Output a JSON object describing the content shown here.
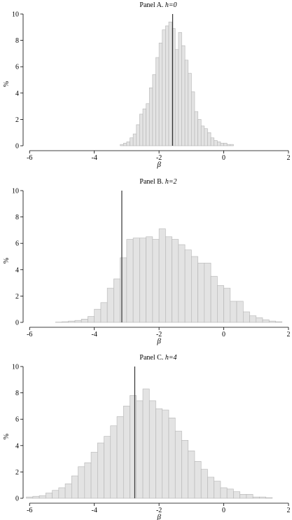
{
  "figure": {
    "bar_fill": "#e3e3e3",
    "bar_stroke": "#b4b4b4",
    "axis_color": "#000000",
    "marker_color": "#333333"
  },
  "chart_data": [
    {
      "type": "bar",
      "title_prefix": "Panel A. ",
      "title_italic": "h=0",
      "xlabel": "β",
      "ylabel": "%",
      "xlim": [
        -6.2,
        2.0
      ],
      "ylim": [
        0,
        10
      ],
      "xticks": [
        -6,
        -4,
        -2,
        0,
        2
      ],
      "yticks": [
        0,
        2,
        4,
        6,
        8,
        10
      ],
      "bin_width": 0.1,
      "bin_start": -3.2,
      "values": [
        0.1,
        0.2,
        0.3,
        0.6,
        0.9,
        1.6,
        2.4,
        2.8,
        3.2,
        4.4,
        5.4,
        6.7,
        7.8,
        8.8,
        9.1,
        9.4,
        8.9,
        7.3,
        8.6,
        7.6,
        6.5,
        5.5,
        4.1,
        2.6,
        2.0,
        1.5,
        1.3,
        1.0,
        0.6,
        0.4,
        0.3,
        0.2,
        0.2,
        0.1,
        0.1
      ],
      "marker_x": -1.58,
      "marker_height": 10
    },
    {
      "type": "bar",
      "title_prefix": "Panel B. ",
      "title_italic": "h=2",
      "xlabel": "β",
      "ylabel": "%",
      "xlim": [
        -6.2,
        2.0
      ],
      "ylim": [
        0,
        10
      ],
      "xticks": [
        -6,
        -4,
        -2,
        0,
        2
      ],
      "yticks": [
        0,
        2,
        4,
        6,
        8,
        10
      ],
      "bin_width": 0.2,
      "bin_start": -5.2,
      "values": [
        0.02,
        0.05,
        0.1,
        0.15,
        0.25,
        0.45,
        1.0,
        1.5,
        2.6,
        3.3,
        4.9,
        6.3,
        6.4,
        6.4,
        6.5,
        6.3,
        7.1,
        6.5,
        6.3,
        5.9,
        5.5,
        5.0,
        4.5,
        4.5,
        3.5,
        2.8,
        2.6,
        1.6,
        1.6,
        0.8,
        0.5,
        0.35,
        0.2,
        0.1,
        0.05
      ],
      "marker_x": -3.15,
      "marker_height": 10
    },
    {
      "type": "bar",
      "title_prefix": "Panel C. ",
      "title_italic": "h=4",
      "xlabel": "β",
      "ylabel": "%",
      "xlim": [
        -6.2,
        2.0
      ],
      "ylim": [
        0,
        10
      ],
      "xticks": [
        -6,
        -4,
        -2,
        0,
        2
      ],
      "yticks": [
        0,
        2,
        4,
        6,
        8,
        10
      ],
      "bin_width": 0.2,
      "bin_start": -6.1,
      "values": [
        0.1,
        0.15,
        0.2,
        0.4,
        0.6,
        0.8,
        1.1,
        1.7,
        2.4,
        2.7,
        3.5,
        4.2,
        4.7,
        5.5,
        6.2,
        7.0,
        7.8,
        7.4,
        8.3,
        7.4,
        6.8,
        6.7,
        6.1,
        5.1,
        4.4,
        3.6,
        2.8,
        2.2,
        1.6,
        1.3,
        0.8,
        0.7,
        0.5,
        0.3,
        0.3,
        0.1,
        0.1,
        0.05
      ],
      "marker_x": -2.75,
      "marker_height": 10
    }
  ]
}
